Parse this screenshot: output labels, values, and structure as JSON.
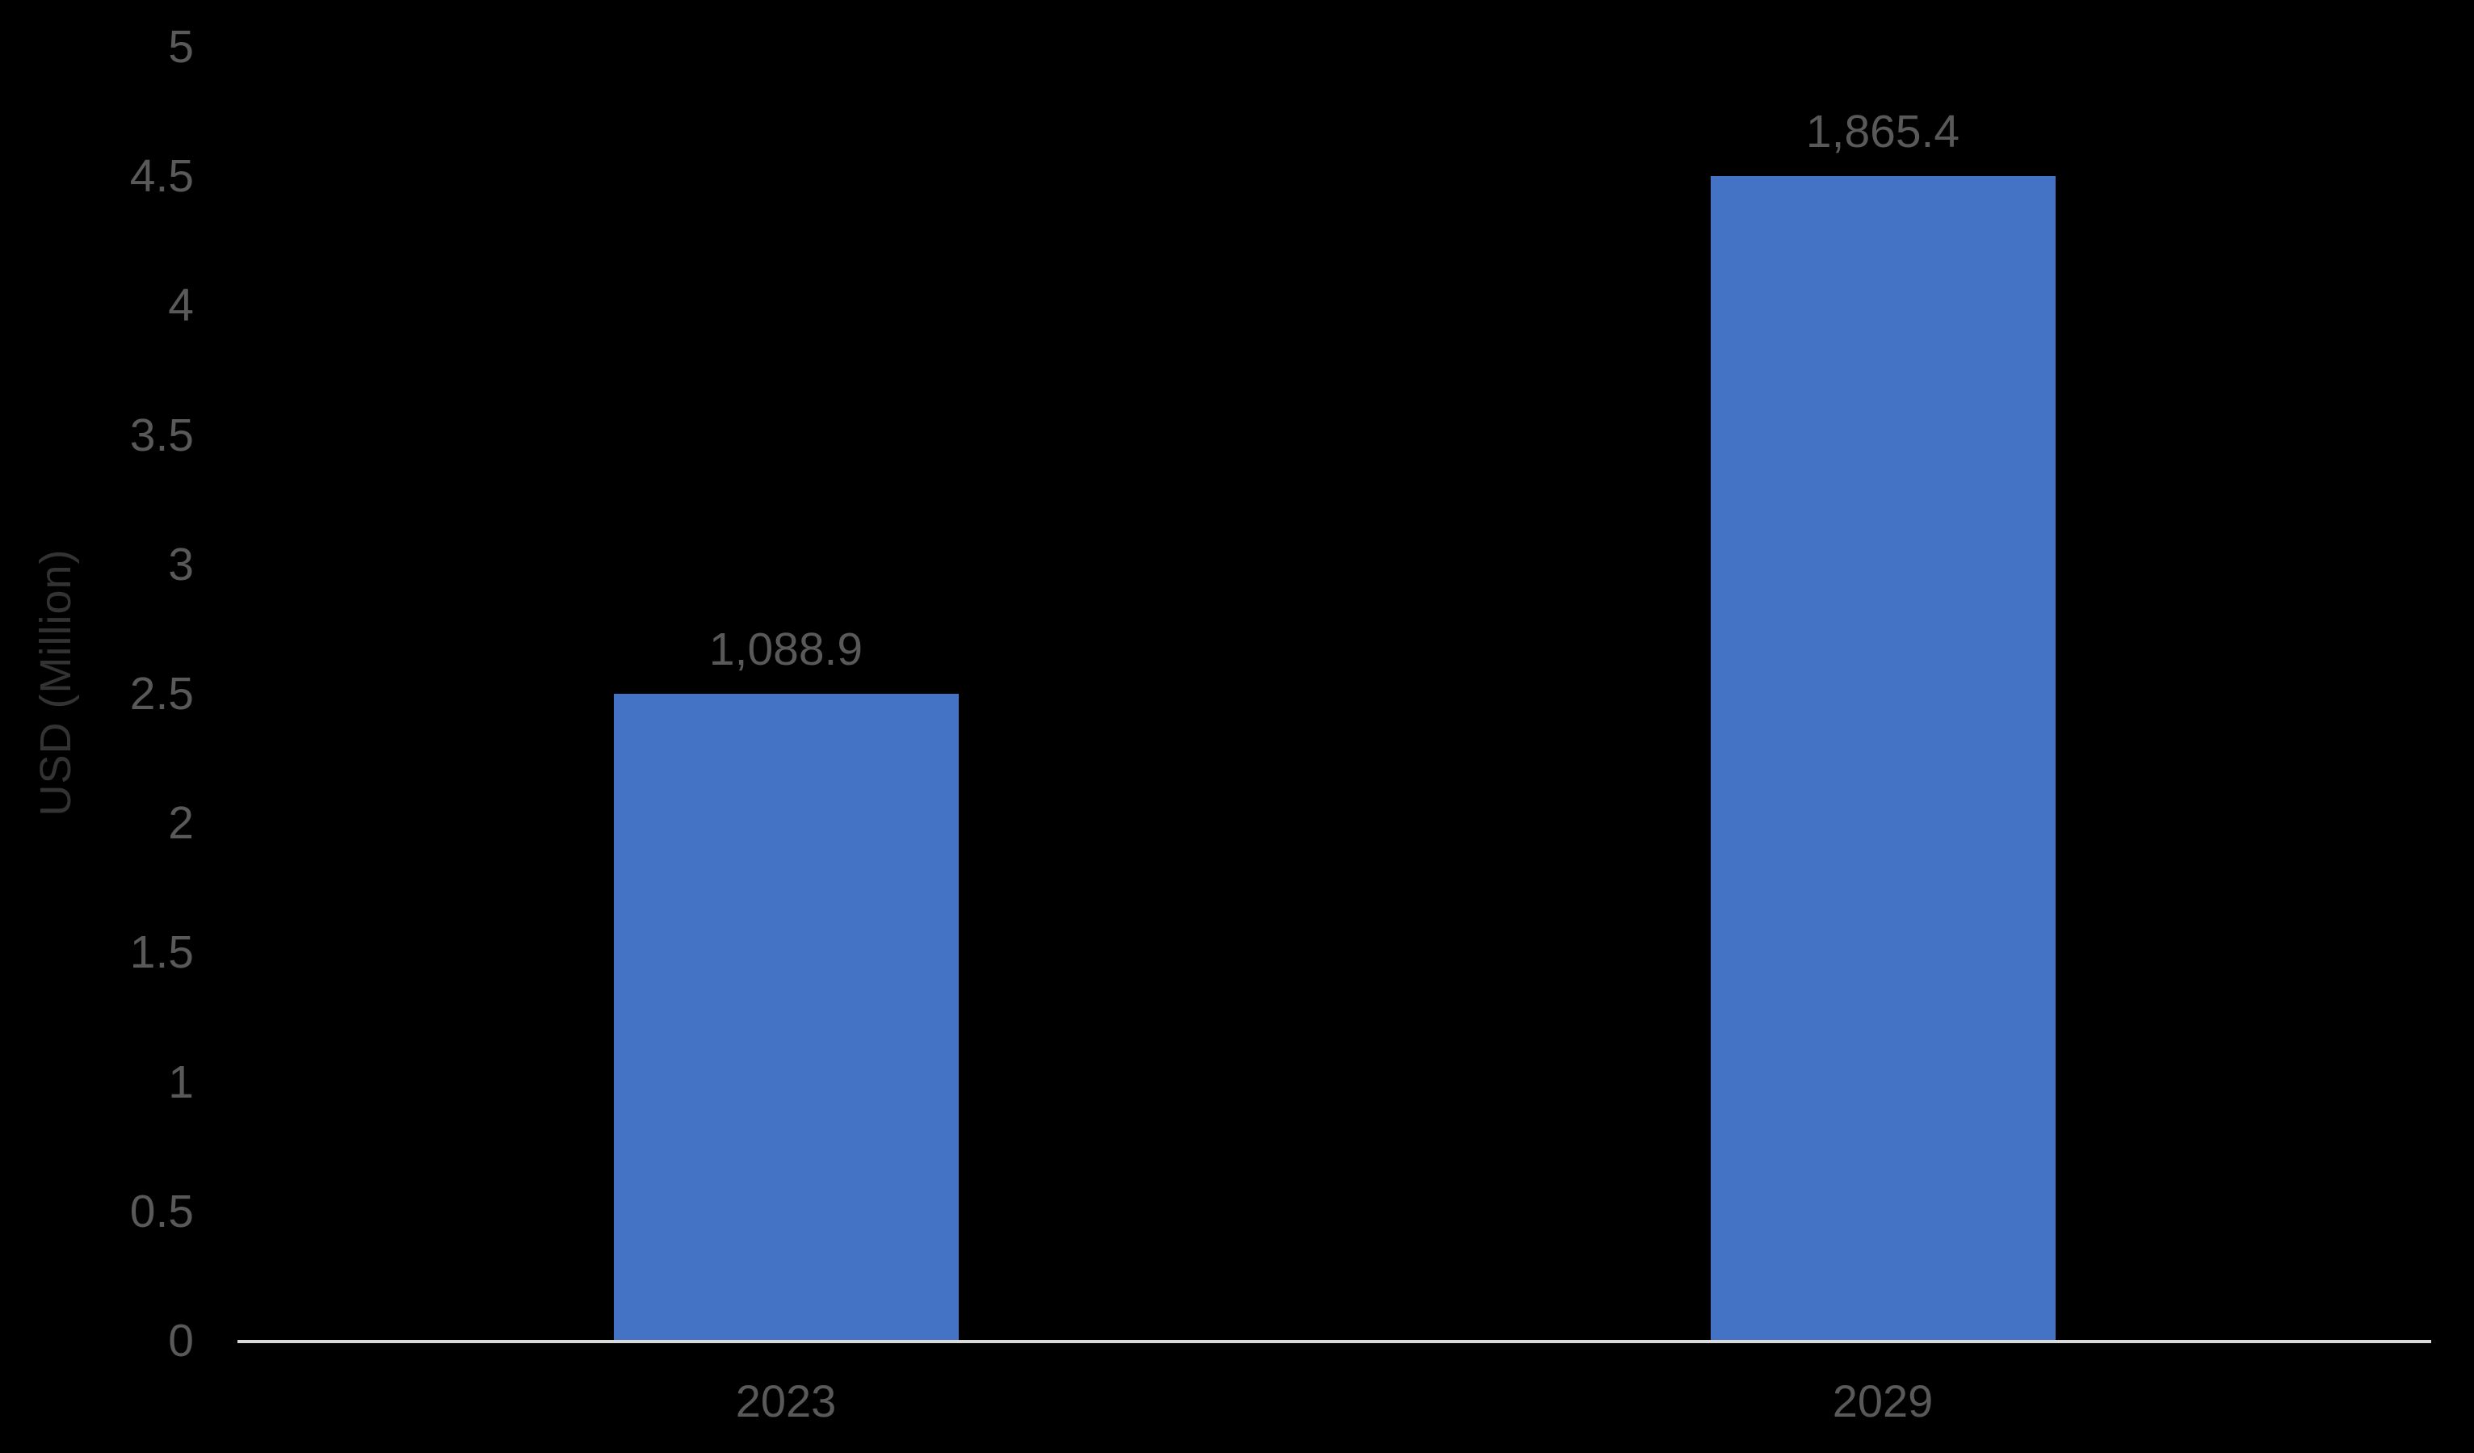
{
  "chart_data": {
    "type": "bar",
    "title": "",
    "xlabel": "",
    "ylabel": "USD (Million)",
    "categories": [
      "2023",
      "2029"
    ],
    "values": [
      1088.9,
      1865.4
    ],
    "data_labels": [
      "1,088.9",
      "1,865.4"
    ],
    "plotted_bar_axis_units": [
      2.5,
      4.5
    ],
    "ylim": [
      0,
      5
    ],
    "ytick_step": 0.5,
    "ytick_labels": [
      "5",
      "4.5",
      "4",
      "3.5",
      "3",
      "2.5",
      "2",
      "1.5",
      "1",
      "0.5",
      "0"
    ],
    "grid": false,
    "legend_position": "none"
  },
  "colors": {
    "background": "#000000",
    "bar": "#4472C4",
    "axis_line": "#D9D9D9",
    "tick_label": "#595959",
    "data_label": "#595959",
    "category_label": "#595959",
    "axis_title": "#333333"
  }
}
